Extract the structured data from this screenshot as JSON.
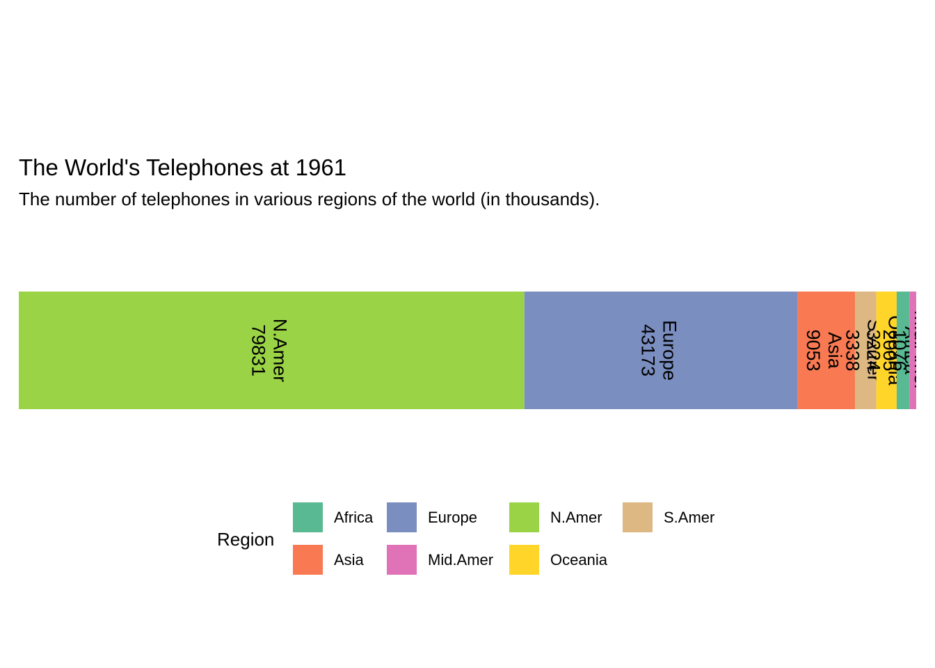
{
  "chart_data": {
    "type": "bar",
    "orientation": "horizontal-stacked",
    "title": "The World's Telephones at 1961",
    "subtitle": "The number of telephones in various regions of the world (in thousands).",
    "xlabel": "",
    "ylabel": "",
    "grid": false,
    "legend_title": "Region",
    "legend_position": "bottom",
    "categories": [
      "N.Amer",
      "Europe",
      "Asia",
      "S.Amer",
      "Oceania",
      "Africa",
      "Mid.Amer"
    ],
    "values": [
      79831,
      43173,
      9053,
      3338,
      3224,
      2005,
      1076
    ],
    "series": [
      {
        "name": "N.Amer",
        "value": 79831,
        "color": "#9AD446"
      },
      {
        "name": "Europe",
        "value": 43173,
        "color": "#7B8EC0"
      },
      {
        "name": "Asia",
        "value": 9053,
        "color": "#F97A52"
      },
      {
        "name": "S.Amer",
        "value": 3338,
        "color": "#DDB883"
      },
      {
        "name": "Oceania",
        "value": 3224,
        "color": "#FFD52A"
      },
      {
        "name": "Africa",
        "value": 2005,
        "color": "#58B993"
      },
      {
        "name": "Mid.Amer",
        "value": 1076,
        "color": "#E072B7"
      }
    ],
    "legend": [
      {
        "label": "Africa",
        "color": "#58B993"
      },
      {
        "label": "Asia",
        "color": "#F97A52"
      },
      {
        "label": "Europe",
        "color": "#7B8EC0"
      },
      {
        "label": "Mid.Amer",
        "color": "#E072B7"
      },
      {
        "label": "N.Amer",
        "color": "#9AD446"
      },
      {
        "label": "Oceania",
        "color": "#FFD52A"
      },
      {
        "label": "S.Amer",
        "color": "#DDB883"
      }
    ]
  }
}
